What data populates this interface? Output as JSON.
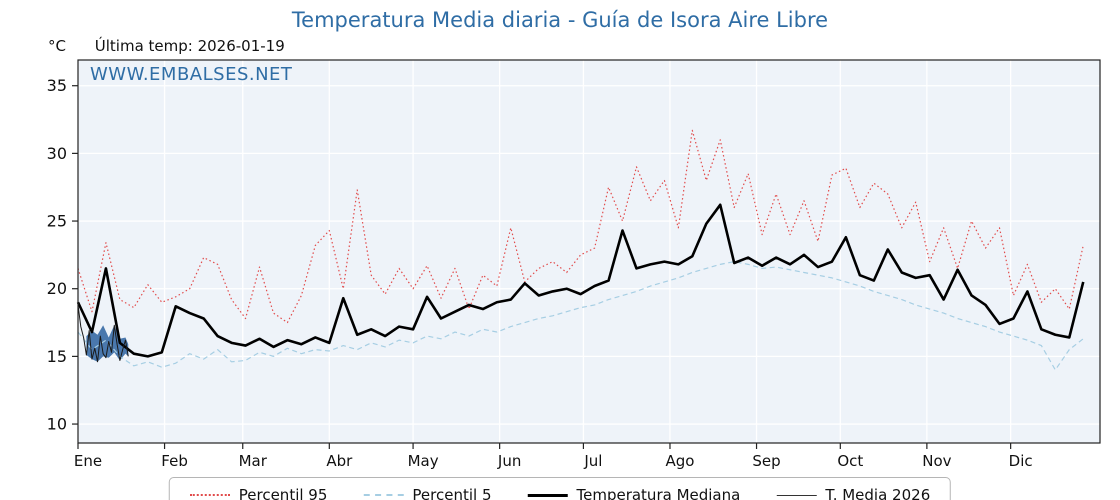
{
  "header": {
    "title": "Temperatura Media diaria - Guía de Isora Aire Libre",
    "y_unit": "°C",
    "last_temp_label": "Última temp: 2026-01-19",
    "watermark": "WWW.EMBALSES.NET"
  },
  "legend": {
    "p95_label": "Percentil 95",
    "p5_label": "Percentil 5",
    "mediana_label": "Temperatura Mediana",
    "t2026_label": "T. Media 2026"
  },
  "colors": {
    "title_blue": "#2f6da5",
    "plot_bg": "#eef3f9",
    "grid": "#ffffff",
    "frame": "#222222",
    "p95": "#e14b4b",
    "p5": "#a6cee3",
    "mediana": "#000000",
    "t2026_line": "#1a1a1a",
    "band_fill": "#3c6ea6"
  },
  "chart_data": {
    "type": "line",
    "title": "Temperatura Media diaria - Guía de Isora Aire Libre",
    "xlabel": "",
    "ylabel": "°C",
    "x_unit": "day_of_year",
    "xlim": [
      1,
      367
    ],
    "ylim": [
      8.6,
      36.9
    ],
    "grid": true,
    "legend_position": "bottom",
    "y_ticks": [
      10,
      15,
      20,
      25,
      30,
      35
    ],
    "x_ticks": {
      "days": [
        1,
        32,
        60,
        91,
        121,
        152,
        182,
        213,
        244,
        274,
        305,
        335
      ],
      "labels": [
        "Ene",
        "Feb",
        "Mar",
        "Abr",
        "May",
        "Jun",
        "Jul",
        "Ago",
        "Sep",
        "Oct",
        "Nov",
        "Dic"
      ]
    },
    "series": [
      {
        "name": "Percentil 95",
        "style": "dotted",
        "color": "#e14b4b",
        "width": 1.2,
        "days": [
          1,
          6,
          11,
          16,
          21,
          26,
          31,
          36,
          41,
          46,
          51,
          56,
          61,
          66,
          71,
          76,
          81,
          86,
          91,
          96,
          101,
          106,
          111,
          116,
          121,
          126,
          131,
          136,
          141,
          146,
          151,
          156,
          161,
          166,
          171,
          176,
          181,
          186,
          191,
          196,
          201,
          206,
          211,
          216,
          221,
          226,
          231,
          236,
          241,
          246,
          251,
          256,
          261,
          266,
          271,
          276,
          281,
          286,
          291,
          296,
          301,
          306,
          311,
          316,
          321,
          326,
          331,
          336,
          341,
          346,
          351,
          356,
          361
        ],
        "values": [
          21.5,
          18.3,
          23.4,
          19.2,
          18.6,
          20.3,
          19.0,
          19.4,
          20.0,
          22.3,
          21.8,
          19.2,
          17.8,
          21.6,
          18.2,
          17.5,
          19.5,
          23.2,
          24.3,
          20.0,
          27.3,
          21.0,
          19.6,
          21.5,
          20.0,
          21.7,
          19.3,
          21.5,
          18.5,
          21.0,
          20.2,
          24.5,
          20.5,
          21.5,
          22.0,
          21.2,
          22.5,
          23.0,
          27.5,
          25.0,
          29.0,
          26.5,
          28.0,
          24.5,
          31.7,
          28.0,
          31.0,
          26.0,
          28.5,
          24.0,
          27.0,
          24.0,
          26.5,
          23.5,
          28.4,
          28.9,
          26.0,
          27.8,
          27.0,
          24.5,
          26.4,
          22.0,
          24.5,
          21.5,
          25.0,
          23.0,
          24.5,
          19.5,
          21.8,
          19.0,
          20.0,
          18.5,
          23.2
        ]
      },
      {
        "name": "Percentil 5",
        "style": "dashed",
        "color": "#a6cee3",
        "width": 1.2,
        "days": [
          1,
          6,
          11,
          16,
          21,
          26,
          31,
          36,
          41,
          46,
          51,
          56,
          61,
          66,
          71,
          76,
          81,
          86,
          91,
          96,
          101,
          106,
          111,
          116,
          121,
          126,
          131,
          136,
          141,
          146,
          151,
          156,
          161,
          166,
          171,
          176,
          181,
          186,
          191,
          196,
          201,
          206,
          211,
          216,
          221,
          226,
          231,
          236,
          241,
          246,
          251,
          256,
          261,
          266,
          271,
          276,
          281,
          286,
          291,
          296,
          301,
          306,
          311,
          316,
          321,
          326,
          331,
          336,
          341,
          346,
          351,
          356,
          361
        ],
        "values": [
          16.8,
          15.5,
          16.2,
          15.0,
          14.3,
          14.6,
          14.2,
          14.5,
          15.2,
          14.8,
          15.5,
          14.6,
          14.7,
          15.3,
          15.0,
          15.6,
          15.2,
          15.5,
          15.4,
          15.8,
          15.5,
          16.0,
          15.7,
          16.2,
          16.0,
          16.5,
          16.3,
          16.8,
          16.5,
          17.0,
          16.8,
          17.2,
          17.5,
          17.8,
          18.0,
          18.3,
          18.6,
          18.8,
          19.2,
          19.5,
          19.8,
          20.2,
          20.5,
          20.8,
          21.2,
          21.5,
          21.8,
          22.0,
          21.8,
          21.5,
          21.6,
          21.4,
          21.2,
          21.0,
          20.8,
          20.5,
          20.2,
          19.8,
          19.5,
          19.2,
          18.8,
          18.5,
          18.2,
          17.8,
          17.5,
          17.2,
          16.8,
          16.5,
          16.2,
          15.8,
          14.0,
          15.5,
          16.3
        ]
      },
      {
        "name": "Temperatura Mediana",
        "style": "solid",
        "color": "#000000",
        "width": 2.6,
        "days": [
          1,
          6,
          11,
          16,
          21,
          26,
          31,
          36,
          41,
          46,
          51,
          56,
          61,
          66,
          71,
          76,
          81,
          86,
          91,
          96,
          101,
          106,
          111,
          116,
          121,
          126,
          131,
          136,
          141,
          146,
          151,
          156,
          161,
          166,
          171,
          176,
          181,
          186,
          191,
          196,
          201,
          206,
          211,
          216,
          221,
          226,
          231,
          236,
          241,
          246,
          251,
          256,
          261,
          266,
          271,
          276,
          281,
          286,
          291,
          296,
          301,
          306,
          311,
          316,
          321,
          326,
          331,
          336,
          341,
          346,
          351,
          356,
          361
        ],
        "values": [
          19.0,
          16.8,
          21.5,
          16.0,
          15.2,
          15.0,
          15.3,
          18.7,
          18.2,
          17.8,
          16.5,
          16.0,
          15.8,
          16.3,
          15.7,
          16.2,
          15.9,
          16.4,
          16.0,
          19.3,
          16.6,
          17.0,
          16.5,
          17.2,
          17.0,
          19.4,
          17.8,
          18.3,
          18.8,
          18.5,
          19.0,
          19.2,
          20.4,
          19.5,
          19.8,
          20.0,
          19.6,
          20.2,
          20.6,
          24.3,
          21.5,
          21.8,
          22.0,
          21.8,
          22.4,
          24.8,
          26.2,
          21.9,
          22.3,
          21.7,
          22.3,
          21.8,
          22.5,
          21.6,
          22.0,
          23.8,
          21.0,
          20.6,
          22.9,
          21.2,
          20.8,
          21.0,
          19.2,
          21.4,
          19.5,
          18.8,
          17.4,
          17.8,
          19.8,
          17.0,
          16.6,
          16.4,
          20.5
        ]
      },
      {
        "name": "T. Media 2026",
        "style": "solid",
        "color": "#1a1a1a",
        "width": 1,
        "days": [
          1,
          2,
          3,
          4,
          5,
          6,
          7,
          8,
          9,
          10,
          11,
          12,
          13,
          14,
          15,
          16,
          17,
          18,
          19
        ],
        "values": [
          18.8,
          17.2,
          16.4,
          15.1,
          16.9,
          14.8,
          15.6,
          14.6,
          16.5,
          15.2,
          14.9,
          16.1,
          15.3,
          17.3,
          15.9,
          14.7,
          15.5,
          16.2,
          15.0
        ]
      }
    ],
    "band_2026": {
      "description": "shaded band for T. Media 2026 (Jan 1-19)",
      "color": "#3c6ea6",
      "opacity": 0.92,
      "days": [
        4,
        6,
        8,
        10,
        12,
        14,
        16,
        18,
        19
      ],
      "upper": [
        16.5,
        16.9,
        16.6,
        17.3,
        16.4,
        17.3,
        16.3,
        16.4,
        15.9
      ],
      "lower": [
        15.1,
        14.8,
        14.6,
        15.0,
        14.9,
        15.3,
        14.7,
        15.2,
        15.0
      ]
    }
  }
}
